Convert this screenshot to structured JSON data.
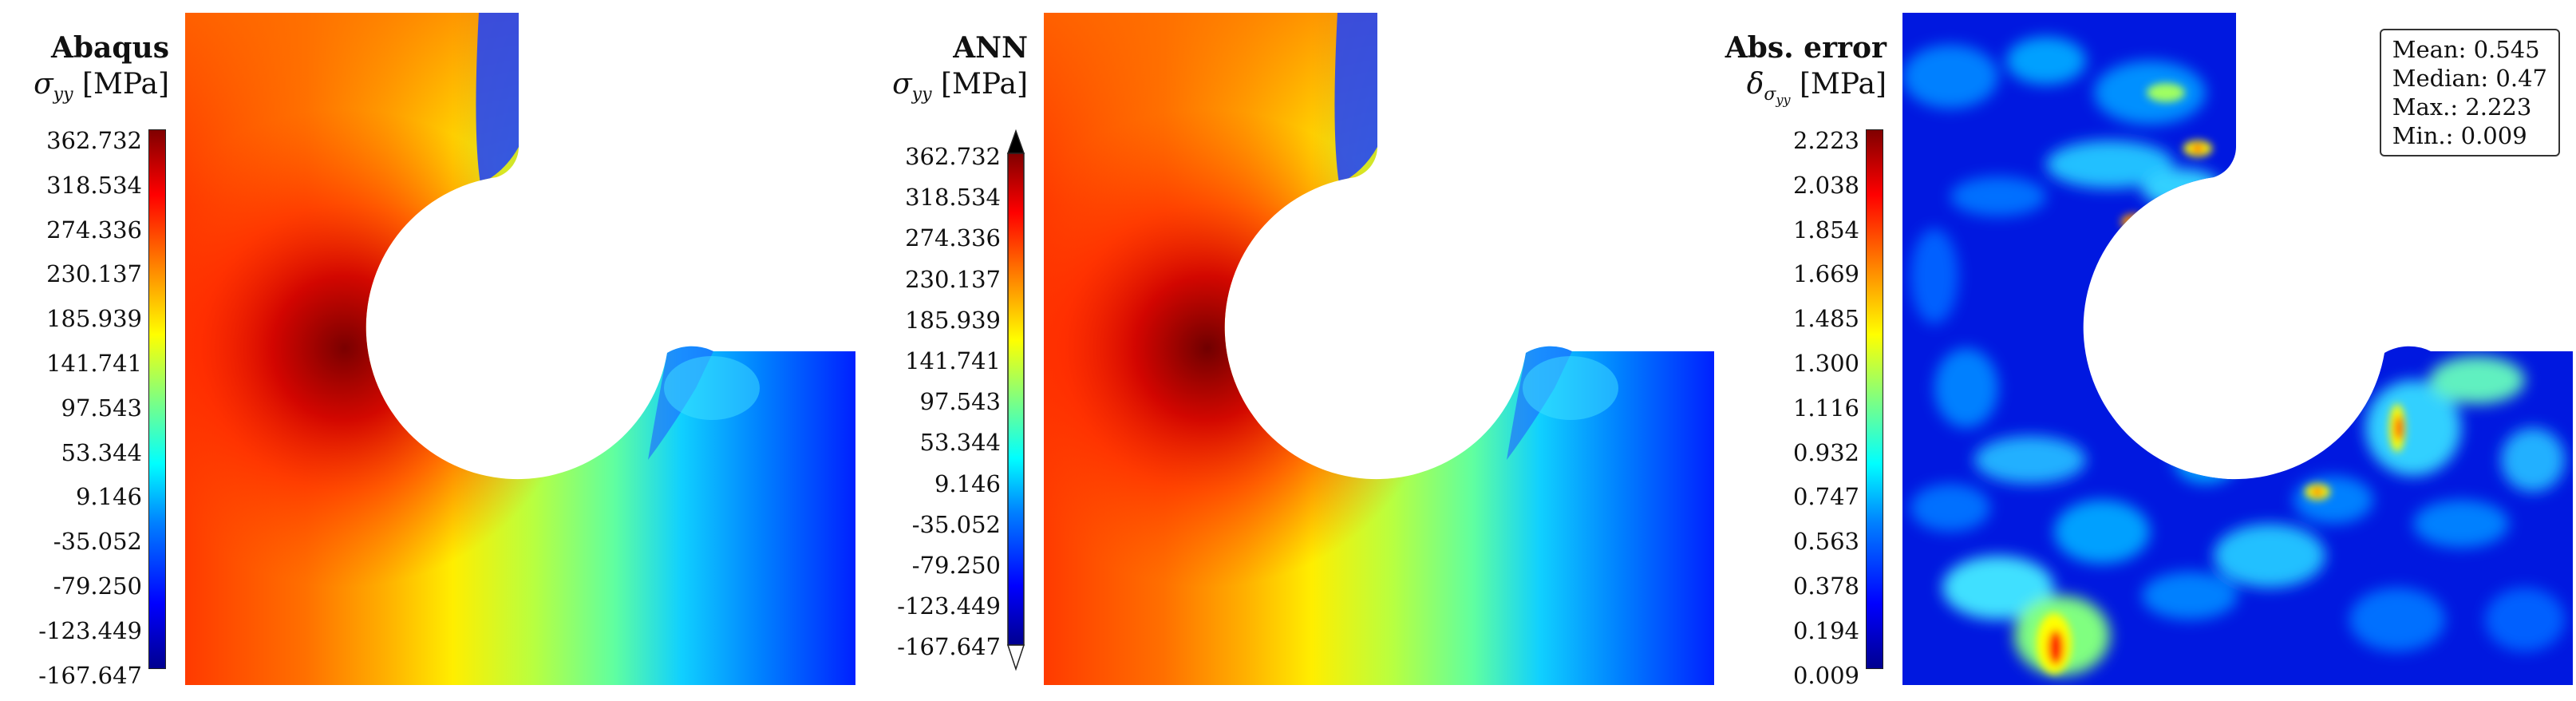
{
  "panels": [
    {
      "title": "Abaqus",
      "quantity": {
        "symbol": "σ",
        "subscript": "yy",
        "unit": "[MPa]"
      },
      "colorbar_ticks": [
        "362.732",
        "318.534",
        "274.336",
        "230.137",
        "185.939",
        "141.741",
        "97.543",
        "53.344",
        "9.146",
        "-35.052",
        "-79.250",
        "-123.449",
        "-167.647"
      ],
      "colormap": "jet",
      "colorbar_extend": "none"
    },
    {
      "title": "ANN",
      "quantity": {
        "symbol": "σ",
        "subscript": "yy",
        "unit": "[MPa]"
      },
      "colorbar_ticks": [
        "362.732",
        "318.534",
        "274.336",
        "230.137",
        "185.939",
        "141.741",
        "97.543",
        "53.344",
        "9.146",
        "-35.052",
        "-79.250",
        "-123.449",
        "-167.647"
      ],
      "colormap": "jet",
      "colorbar_extend": "both"
    },
    {
      "title": "Abs. error",
      "quantity": {
        "symbol": "δ",
        "subscript": "σ",
        "subsubscript": "yy",
        "unit": "[MPa]"
      },
      "colorbar_ticks": [
        "2.223",
        "2.038",
        "1.854",
        "1.669",
        "1.485",
        "1.300",
        "1.116",
        "0.932",
        "0.747",
        "0.563",
        "0.378",
        "0.194",
        "0.009"
      ],
      "colormap": "jet",
      "colorbar_extend": "none",
      "stats": [
        "Mean: 0.545",
        "Median: 0.47",
        "Max.: 2.223",
        "Min.: 0.009"
      ]
    }
  ],
  "colors": {
    "jet_dark_red": "#800000",
    "jet_blue": "#0000ff",
    "jet_cyan": "#00ffff",
    "jet_yellow": "#ffff00"
  }
}
